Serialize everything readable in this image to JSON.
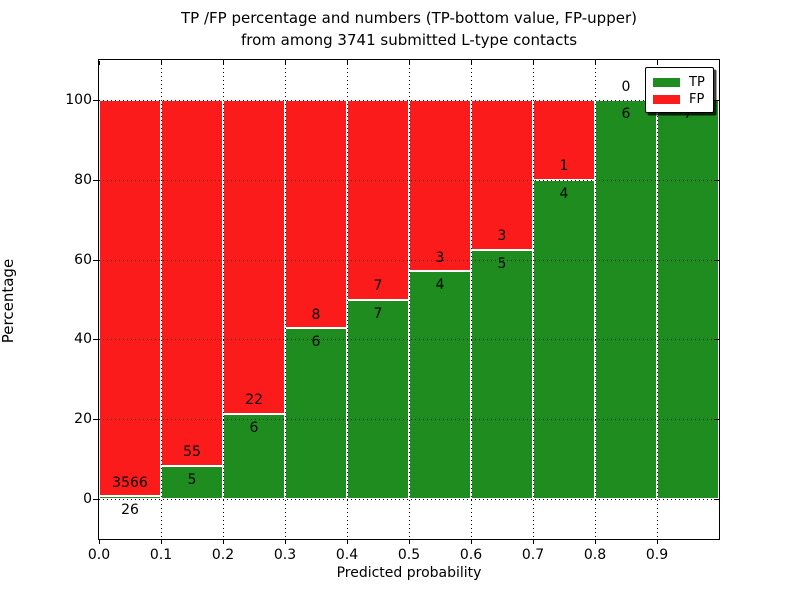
{
  "figure": {
    "title_line1": "TP /FP percentage and numbers (TP-bottom value, FP-upper)",
    "title_line2": "from among 3741 submitted L-type contacts"
  },
  "chart_data": {
    "type": "bar",
    "stacked": true,
    "title": "TP /FP percentage and numbers (TP-bottom value, FP-upper)\nfrom among 3741 submitted L-type contacts",
    "xlabel": "Predicted probability",
    "ylabel": "Percentage",
    "xlim": [
      0.0,
      1.0
    ],
    "ylim": [
      -10,
      110
    ],
    "grid": true,
    "bin_width": 0.1,
    "x_tick_labels": [
      "0.0",
      "0.1",
      "0.2",
      "0.3",
      "0.4",
      "0.5",
      "0.6",
      "0.7",
      "0.8",
      "0.9"
    ],
    "y_tick_values": [
      0,
      20,
      40,
      60,
      80,
      100
    ],
    "y_tick_labels": [
      "0",
      "20",
      "40",
      "60",
      "80",
      "100"
    ],
    "series": [
      {
        "name": "TP",
        "color": "#1e8c1e",
        "position": "bottom"
      },
      {
        "name": "FP",
        "color": "#fb1b1b",
        "position": "top"
      }
    ],
    "bins": [
      {
        "x0": 0.0,
        "x1": 0.1,
        "tp": 26,
        "fp": 3566,
        "tp_label": "26",
        "fp_label": "3566"
      },
      {
        "x0": 0.1,
        "x1": 0.2,
        "tp": 5,
        "fp": 55,
        "tp_label": "5",
        "fp_label": "55"
      },
      {
        "x0": 0.2,
        "x1": 0.3,
        "tp": 6,
        "fp": 22,
        "tp_label": "6",
        "fp_label": "22"
      },
      {
        "x0": 0.3,
        "x1": 0.4,
        "tp": 6,
        "fp": 8,
        "tp_label": "6",
        "fp_label": "8"
      },
      {
        "x0": 0.4,
        "x1": 0.5,
        "tp": 7,
        "fp": 7,
        "tp_label": "7",
        "fp_label": "7"
      },
      {
        "x0": 0.5,
        "x1": 0.6,
        "tp": 4,
        "fp": 3,
        "tp_label": "4",
        "fp_label": "3"
      },
      {
        "x0": 0.6,
        "x1": 0.7,
        "tp": 5,
        "fp": 3,
        "tp_label": "5",
        "fp_label": "3"
      },
      {
        "x0": 0.7,
        "x1": 0.8,
        "tp": 4,
        "fp": 1,
        "tp_label": "4",
        "fp_label": "1"
      },
      {
        "x0": 0.8,
        "x1": 0.9,
        "tp": 6,
        "fp": 0,
        "tp_label": "6",
        "fp_label": "0"
      },
      {
        "x0": 0.9,
        "x1": 1.0,
        "tp": 7,
        "fp": 0,
        "tp_label": "7",
        "fp_label": null
      }
    ],
    "legend": {
      "position": "upper right",
      "entries": [
        {
          "label": "TP",
          "color": "#1e8c1e"
        },
        {
          "label": "FP",
          "color": "#fb1b1b"
        }
      ]
    }
  },
  "colors": {
    "tp": "#1e8c1e",
    "fp": "#fb1b1b",
    "grid": "#000000",
    "background": "#ffffff"
  }
}
